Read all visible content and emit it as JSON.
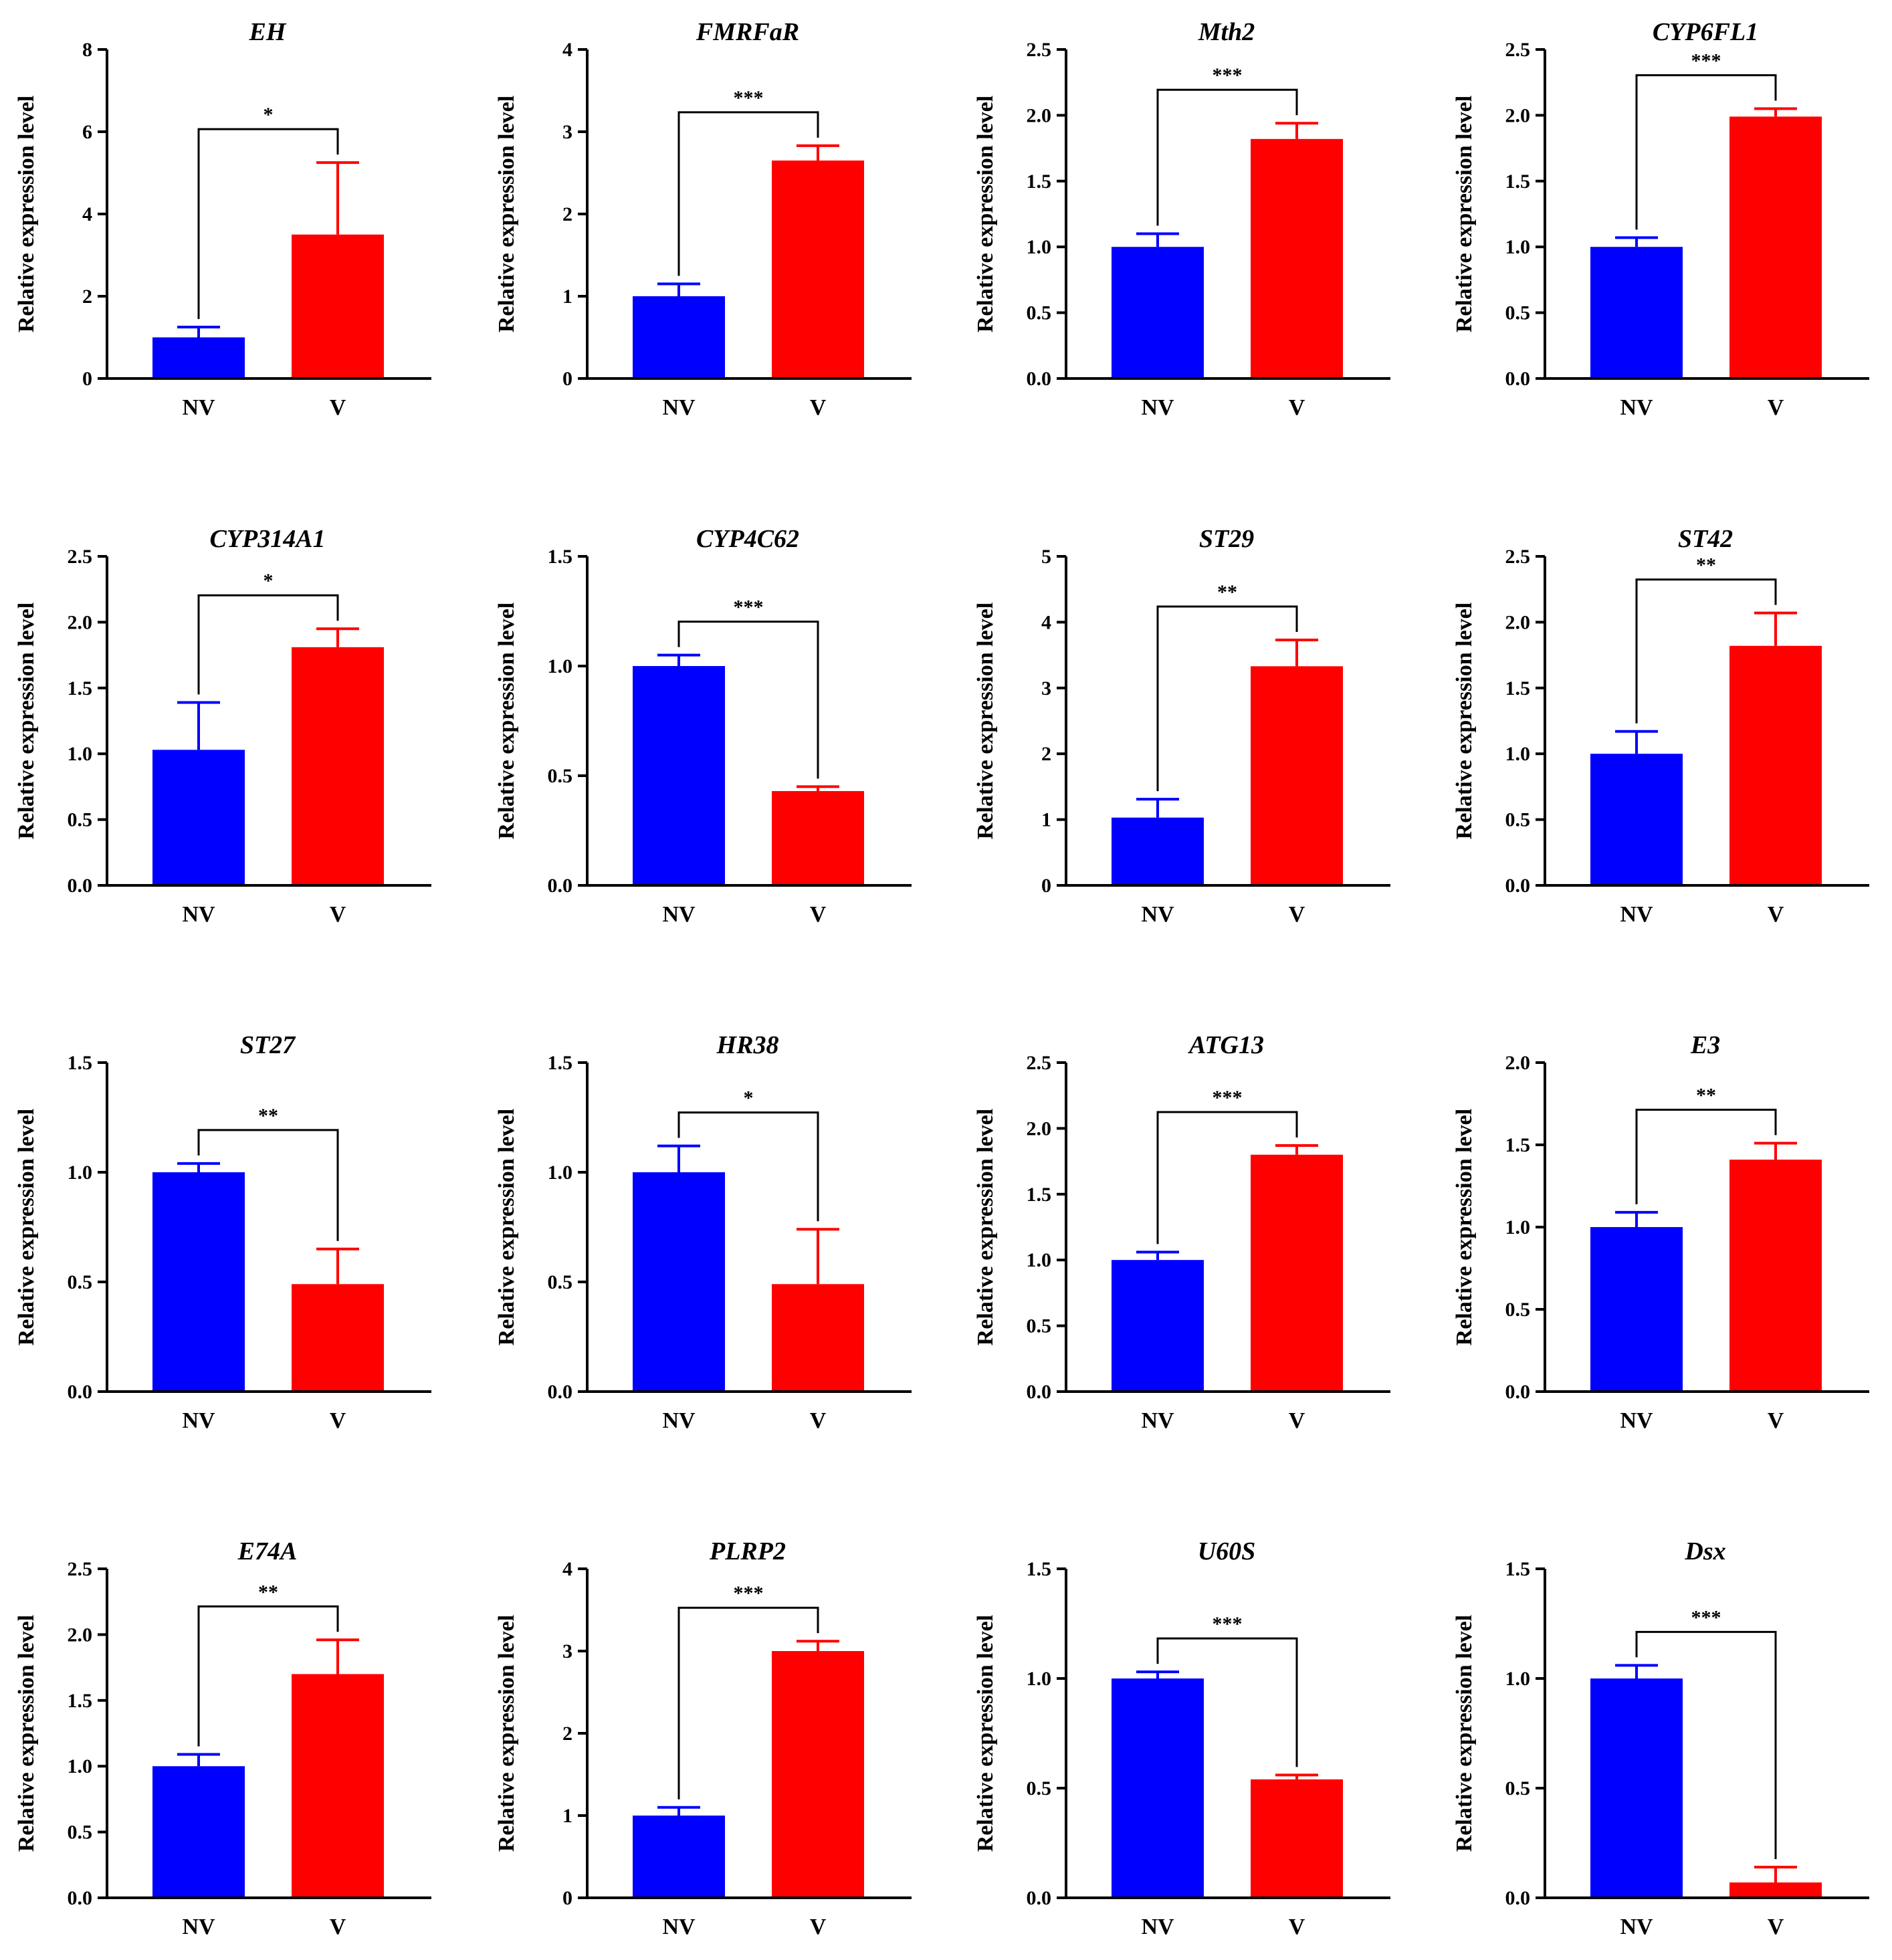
{
  "colors": {
    "NV": "#0000ff",
    "V": "#ff0000",
    "axis": "#000000"
  },
  "chart_data": [
    {
      "type": "bar",
      "title": "EH",
      "ylabel": "Relative expression level",
      "categories": [
        "NV",
        "V"
      ],
      "values": [
        1.0,
        3.5
      ],
      "errors": [
        0.25,
        1.75
      ],
      "ylim": [
        0,
        8
      ],
      "yticks": [
        "0",
        "2",
        "4",
        "6",
        "8"
      ],
      "significance": "*"
    },
    {
      "type": "bar",
      "title": "FMRFaR",
      "ylabel": "Relative expression level",
      "categories": [
        "NV",
        "V"
      ],
      "values": [
        1.0,
        2.65
      ],
      "errors": [
        0.15,
        0.18
      ],
      "ylim": [
        0,
        4
      ],
      "yticks": [
        "0",
        "1",
        "2",
        "3",
        "4"
      ],
      "significance": "***"
    },
    {
      "type": "bar",
      "title": "Mth2",
      "ylabel": "Relative expression level",
      "categories": [
        "NV",
        "V"
      ],
      "values": [
        1.0,
        1.82
      ],
      "errors": [
        0.1,
        0.12
      ],
      "ylim": [
        0,
        2.5
      ],
      "yticks": [
        "0.0",
        "0.5",
        "1.0",
        "1.5",
        "2.0",
        "2.5"
      ],
      "significance": "***"
    },
    {
      "type": "bar",
      "title": "CYP6FL1",
      "ylabel": "Relative expression level",
      "categories": [
        "NV",
        "V"
      ],
      "values": [
        1.0,
        1.99
      ],
      "errors": [
        0.07,
        0.06
      ],
      "ylim": [
        0,
        2.5
      ],
      "yticks": [
        "0.0",
        "0.5",
        "1.0",
        "1.5",
        "2.0",
        "2.5"
      ],
      "significance": "***"
    },
    {
      "type": "bar",
      "title": "CYP314A1",
      "ylabel": "Relative expression level",
      "categories": [
        "NV",
        "V"
      ],
      "values": [
        1.03,
        1.81
      ],
      "errors": [
        0.36,
        0.14
      ],
      "ylim": [
        0,
        2.5
      ],
      "yticks": [
        "0.0",
        "0.5",
        "1.0",
        "1.5",
        "2.0",
        "2.5"
      ],
      "significance": "*"
    },
    {
      "type": "bar",
      "title": "CYP4C62",
      "ylabel": "Relative expression level",
      "categories": [
        "NV",
        "V"
      ],
      "values": [
        1.0,
        0.43
      ],
      "errors": [
        0.05,
        0.02
      ],
      "ylim": [
        0,
        1.5
      ],
      "yticks": [
        "0.0",
        "0.5",
        "1.0",
        "1.5"
      ],
      "significance": "***"
    },
    {
      "type": "bar",
      "title": "ST29",
      "ylabel": "Relative expression level",
      "categories": [
        "NV",
        "V"
      ],
      "values": [
        1.03,
        3.33
      ],
      "errors": [
        0.28,
        0.4
      ],
      "ylim": [
        0,
        5
      ],
      "yticks": [
        "0",
        "1",
        "2",
        "3",
        "4",
        "5"
      ],
      "significance": "**"
    },
    {
      "type": "bar",
      "title": "ST42",
      "ylabel": "Relative expression level",
      "categories": [
        "NV",
        "V"
      ],
      "values": [
        1.0,
        1.82
      ],
      "errors": [
        0.17,
        0.25
      ],
      "ylim": [
        0,
        2.5
      ],
      "yticks": [
        "0.0",
        "0.5",
        "1.0",
        "1.5",
        "2.0",
        "2.5"
      ],
      "significance": "**"
    },
    {
      "type": "bar",
      "title": "ST27",
      "ylabel": "Relative expression level",
      "categories": [
        "NV",
        "V"
      ],
      "values": [
        1.0,
        0.49
      ],
      "errors": [
        0.04,
        0.16
      ],
      "ylim": [
        0,
        1.5
      ],
      "yticks": [
        "0.0",
        "0.5",
        "1.0",
        "1.5"
      ],
      "significance": "**"
    },
    {
      "type": "bar",
      "title": "HR38",
      "ylabel": "Relative expression level",
      "categories": [
        "NV",
        "V"
      ],
      "values": [
        1.0,
        0.49
      ],
      "errors": [
        0.12,
        0.25
      ],
      "ylim": [
        0,
        1.5
      ],
      "yticks": [
        "0.0",
        "0.5",
        "1.0",
        "1.5"
      ],
      "significance": "*"
    },
    {
      "type": "bar",
      "title": "ATG13",
      "ylabel": "Relative expression level",
      "categories": [
        "NV",
        "V"
      ],
      "values": [
        1.0,
        1.8
      ],
      "errors": [
        0.06,
        0.07
      ],
      "ylim": [
        0,
        2.5
      ],
      "yticks": [
        "0.0",
        "0.5",
        "1.0",
        "1.5",
        "2.0",
        "2.5"
      ],
      "significance": "***"
    },
    {
      "type": "bar",
      "title": "E3",
      "ylabel": "Relative expression level",
      "categories": [
        "NV",
        "V"
      ],
      "values": [
        1.0,
        1.41
      ],
      "errors": [
        0.09,
        0.1
      ],
      "ylim": [
        0,
        2.0
      ],
      "yticks": [
        "0.0",
        "0.5",
        "1.0",
        "1.5",
        "2.0"
      ],
      "significance": "**"
    },
    {
      "type": "bar",
      "title": "E74A",
      "ylabel": "Relative expression level",
      "categories": [
        "NV",
        "V"
      ],
      "values": [
        1.0,
        1.7
      ],
      "errors": [
        0.09,
        0.26
      ],
      "ylim": [
        0,
        2.5
      ],
      "yticks": [
        "0.0",
        "0.5",
        "1.0",
        "1.5",
        "2.0",
        "2.5"
      ],
      "significance": "**"
    },
    {
      "type": "bar",
      "title": "PLRP2",
      "ylabel": "Relative expression level",
      "categories": [
        "NV",
        "V"
      ],
      "values": [
        1.0,
        3.0
      ],
      "errors": [
        0.1,
        0.12
      ],
      "ylim": [
        0,
        4
      ],
      "yticks": [
        "0",
        "1",
        "2",
        "3",
        "4"
      ],
      "significance": "***"
    },
    {
      "type": "bar",
      "title": "U60S",
      "ylabel": "Relative expression level",
      "categories": [
        "NV",
        "V"
      ],
      "values": [
        1.0,
        0.54
      ],
      "errors": [
        0.03,
        0.02
      ],
      "ylim": [
        0,
        1.5
      ],
      "yticks": [
        "0.0",
        "0.5",
        "1.0",
        "1.5"
      ],
      "significance": "***"
    },
    {
      "type": "bar",
      "title": "Dsx",
      "ylabel": "Relative expression level",
      "categories": [
        "NV",
        "V"
      ],
      "values": [
        1.0,
        0.07
      ],
      "errors": [
        0.06,
        0.07
      ],
      "ylim": [
        0,
        1.5
      ],
      "yticks": [
        "0.0",
        "0.5",
        "1.0",
        "1.5"
      ],
      "significance": "***"
    }
  ]
}
